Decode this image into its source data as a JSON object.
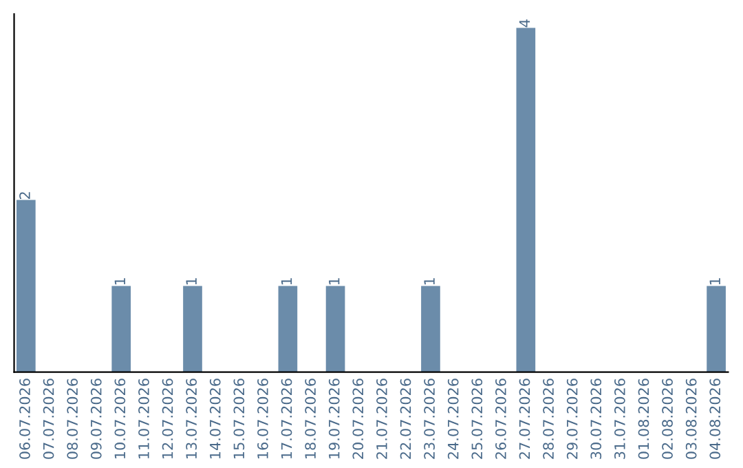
{
  "chart_data": {
    "type": "bar",
    "categories": [
      "06.07.2026",
      "07.07.2026",
      "08.07.2026",
      "09.07.2026",
      "10.07.2026",
      "11.07.2026",
      "12.07.2026",
      "13.07.2026",
      "14.07.2026",
      "15.07.2026",
      "16.07.2026",
      "17.07.2026",
      "18.07.2026",
      "19.07.2026",
      "20.07.2026",
      "21.07.2026",
      "22.07.2026",
      "23.07.2026",
      "24.07.2026",
      "25.07.2026",
      "26.07.2026",
      "27.07.2026",
      "28.07.2026",
      "29.07.2026",
      "30.07.2026",
      "31.07.2026",
      "01.08.2026",
      "02.08.2026",
      "03.08.2026",
      "04.08.2026"
    ],
    "values": [
      2,
      0,
      0,
      0,
      1,
      0,
      0,
      1,
      0,
      0,
      0,
      1,
      0,
      1,
      0,
      0,
      0,
      1,
      0,
      0,
      0,
      4,
      0,
      0,
      0,
      0,
      0,
      0,
      0,
      1
    ],
    "value_labels": [
      "2",
      null,
      null,
      null,
      "1",
      null,
      null,
      "1",
      null,
      null,
      null,
      "1",
      null,
      "1",
      null,
      null,
      null,
      "1",
      null,
      null,
      null,
      "4",
      null,
      null,
      null,
      null,
      null,
      null,
      null,
      "1"
    ],
    "color": "#6b8caa",
    "tick_labels": "x",
    "grid": false,
    "legend": false
  }
}
